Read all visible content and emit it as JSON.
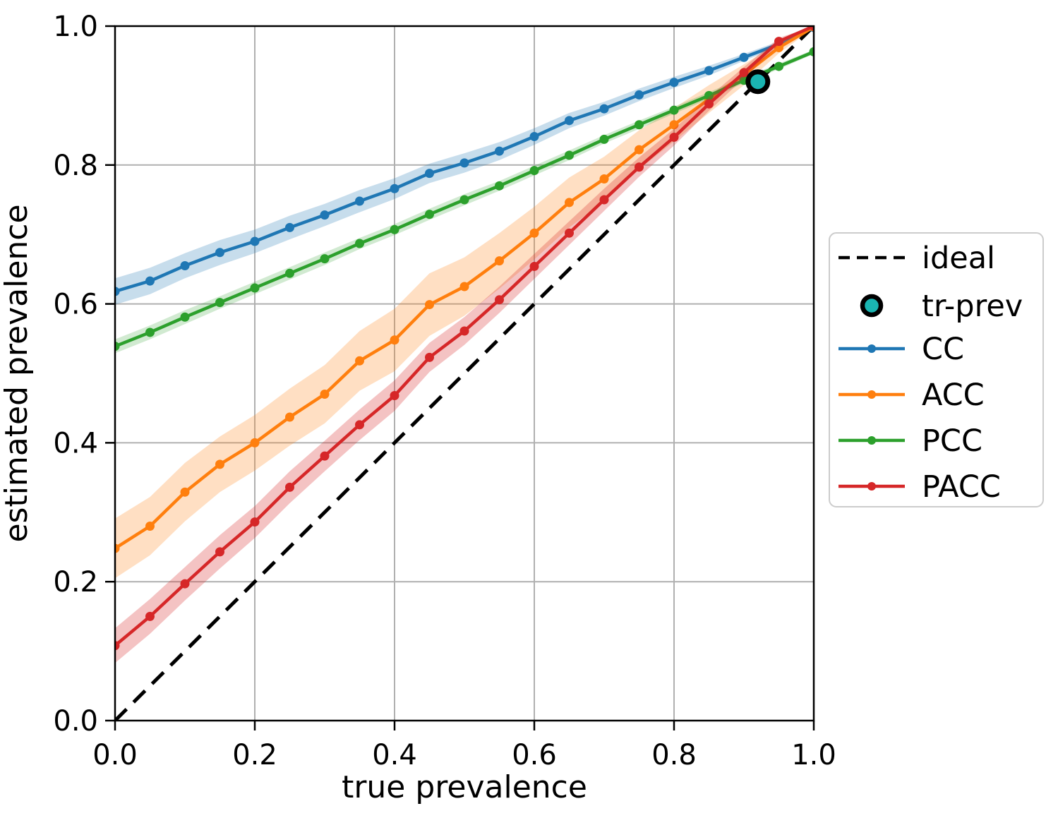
{
  "chart_data": {
    "type": "line",
    "title": "",
    "xlabel": "true prevalence",
    "ylabel": "estimated prevalence",
    "xlim": [
      0.0,
      1.0
    ],
    "ylim": [
      0.0,
      1.0
    ],
    "grid": true,
    "legend_position": "center right outside",
    "xticks": {
      "values": [
        0.0,
        0.2,
        0.4,
        0.6,
        0.8,
        1.0
      ],
      "labels": [
        "0.0",
        "0.2",
        "0.4",
        "0.6",
        "0.8",
        "1.0"
      ]
    },
    "yticks": {
      "values": [
        0.0,
        0.2,
        0.4,
        0.6,
        0.8,
        1.0
      ],
      "labels": [
        "0.0",
        "0.2",
        "0.4",
        "0.6",
        "0.8",
        "1.0"
      ]
    },
    "x": [
      0.0,
      0.05,
      0.1,
      0.15,
      0.2,
      0.25,
      0.3,
      0.35,
      0.4,
      0.45,
      0.5,
      0.55,
      0.6,
      0.65,
      0.7,
      0.75,
      0.8,
      0.85,
      0.9,
      0.95,
      1.0
    ],
    "series": [
      {
        "name": "CC",
        "color": "#1f77b4",
        "band_alpha": 0.25,
        "values": [
          0.618,
          0.633,
          0.655,
          0.674,
          0.69,
          0.71,
          0.728,
          0.748,
          0.766,
          0.788,
          0.803,
          0.82,
          0.841,
          0.864,
          0.881,
          0.901,
          0.919,
          0.936,
          0.955,
          0.974,
          0.998
        ],
        "band_halfwidth": [
          0.019,
          0.019,
          0.018,
          0.018,
          0.017,
          0.017,
          0.016,
          0.016,
          0.015,
          0.014,
          0.014,
          0.013,
          0.012,
          0.011,
          0.01,
          0.009,
          0.008,
          0.007,
          0.005,
          0.004,
          0.002
        ]
      },
      {
        "name": "ACC",
        "color": "#ff7f0e",
        "band_alpha": 0.25,
        "values": [
          0.248,
          0.28,
          0.329,
          0.369,
          0.4,
          0.437,
          0.47,
          0.518,
          0.548,
          0.599,
          0.625,
          0.662,
          0.702,
          0.746,
          0.78,
          0.822,
          0.858,
          0.895,
          0.93,
          0.969,
          0.999
        ],
        "band_halfwidth": [
          0.043,
          0.042,
          0.042,
          0.04,
          0.04,
          0.041,
          0.042,
          0.043,
          0.045,
          0.045,
          0.042,
          0.04,
          0.038,
          0.036,
          0.032,
          0.028,
          0.024,
          0.02,
          0.015,
          0.008,
          0.002
        ]
      },
      {
        "name": "PCC",
        "color": "#2ca02c",
        "band_alpha": 0.22,
        "values": [
          0.539,
          0.559,
          0.581,
          0.602,
          0.623,
          0.644,
          0.665,
          0.687,
          0.707,
          0.729,
          0.75,
          0.77,
          0.792,
          0.814,
          0.837,
          0.858,
          0.879,
          0.9,
          0.922,
          0.942,
          0.963
        ],
        "band_halfwidth": [
          0.01,
          0.01,
          0.01,
          0.009,
          0.009,
          0.009,
          0.009,
          0.008,
          0.008,
          0.008,
          0.008,
          0.007,
          0.007,
          0.007,
          0.006,
          0.006,
          0.005,
          0.005,
          0.004,
          0.004,
          0.003
        ]
      },
      {
        "name": "PACC",
        "color": "#d62728",
        "band_alpha": 0.28,
        "values": [
          0.108,
          0.15,
          0.197,
          0.243,
          0.286,
          0.336,
          0.381,
          0.426,
          0.468,
          0.523,
          0.561,
          0.606,
          0.654,
          0.702,
          0.75,
          0.797,
          0.84,
          0.888,
          0.933,
          0.978,
          1.0
        ],
        "band_halfwidth": [
          0.025,
          0.025,
          0.024,
          0.024,
          0.023,
          0.023,
          0.022,
          0.022,
          0.022,
          0.021,
          0.02,
          0.019,
          0.018,
          0.017,
          0.016,
          0.014,
          0.012,
          0.01,
          0.008,
          0.005,
          0.001
        ]
      }
    ],
    "ideal": {
      "label": "ideal",
      "color": "#000000",
      "style": "dashed",
      "from": [
        0.0,
        0.0
      ],
      "to": [
        1.0,
        1.0
      ]
    },
    "tr_prev": {
      "label": "tr-prev",
      "x": 0.92,
      "y": 0.92,
      "fill": "#1ab5b2",
      "edge": "#000000"
    },
    "legend": {
      "entries": [
        "ideal",
        "tr-prev",
        "CC",
        "ACC",
        "PCC",
        "PACC"
      ]
    },
    "colors": {
      "grid": "#b0b0b0",
      "spine": "#000000",
      "legend_border": "#cccccc",
      "background": "#ffffff"
    }
  }
}
